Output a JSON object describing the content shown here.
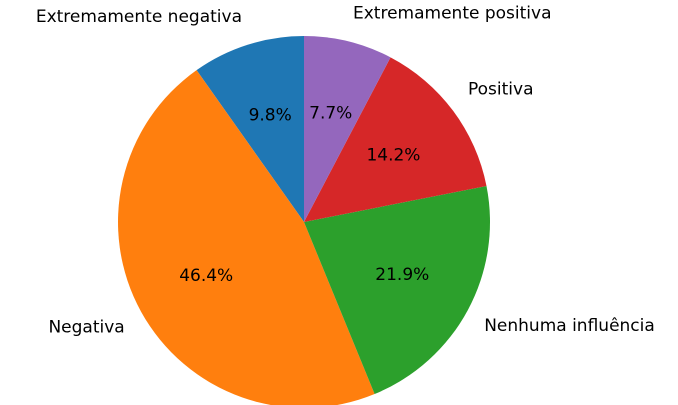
{
  "chart_data": {
    "type": "pie",
    "start_angle_deg": 90,
    "direction": "counterclockwise",
    "slices": [
      {
        "label": "Extremamente negativa",
        "value": 9.8,
        "pct_label": "9.8%",
        "color": "#1f77b4"
      },
      {
        "label": "Negativa",
        "value": 46.4,
        "pct_label": "46.4%",
        "color": "#ff7f0e"
      },
      {
        "label": "Nenhuma influência",
        "value": 21.9,
        "pct_label": "21.9%",
        "color": "#2ca02c"
      },
      {
        "label": "Positiva",
        "value": 14.2,
        "pct_label": "14.2%",
        "color": "#d62728"
      },
      {
        "label": "Extremamente positiva",
        "value": 7.7,
        "pct_label": "7.7%",
        "color": "#9467bd"
      }
    ]
  }
}
